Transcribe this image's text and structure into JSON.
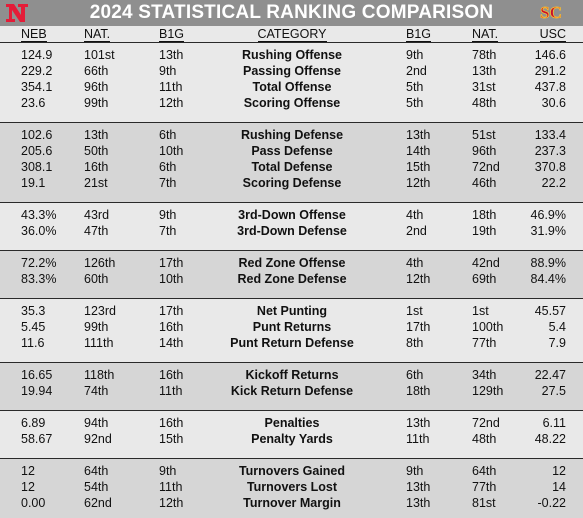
{
  "title": "2024 STATISTICAL RANKING COMPARISON",
  "colors": {
    "header_bg": "#8f8f8f",
    "row_light": "#e9e9e9",
    "row_dark": "#d6d6d6",
    "neb_red": "#e41c38",
    "usc_cardinal": "#c8102e",
    "usc_gold": "#ffc72c"
  },
  "logos": {
    "left": "nebraska-n-logo",
    "right": "usc-sc-logo"
  },
  "columns": {
    "neb": "NEB",
    "neb_nat": "NAT.",
    "neb_b1g": "B1G",
    "category": "CATEGORY",
    "usc_b1g": "B1G",
    "usc_nat": "NAT.",
    "usc": "USC"
  },
  "sections": [
    {
      "rows": [
        {
          "neb": "124.9",
          "neb_nat": "101st",
          "neb_b1g": "13th",
          "category": "Rushing Offense",
          "usc_b1g": "9th",
          "usc_nat": "78th",
          "usc": "146.6"
        },
        {
          "neb": "229.2",
          "neb_nat": "66th",
          "neb_b1g": "9th",
          "category": "Passing Offense",
          "usc_b1g": "2nd",
          "usc_nat": "13th",
          "usc": "291.2"
        },
        {
          "neb": "354.1",
          "neb_nat": "96th",
          "neb_b1g": "11th",
          "category": "Total Offense",
          "usc_b1g": "5th",
          "usc_nat": "31st",
          "usc": "437.8"
        },
        {
          "neb": "23.6",
          "neb_nat": "99th",
          "neb_b1g": "12th",
          "category": "Scoring Offense",
          "usc_b1g": "5th",
          "usc_nat": "48th",
          "usc": "30.6"
        }
      ]
    },
    {
      "rows": [
        {
          "neb": "102.6",
          "neb_nat": "13th",
          "neb_b1g": "6th",
          "category": "Rushing Defense",
          "usc_b1g": "13th",
          "usc_nat": "51st",
          "usc": "133.4"
        },
        {
          "neb": "205.6",
          "neb_nat": "50th",
          "neb_b1g": "10th",
          "category": "Pass Defense",
          "usc_b1g": "14th",
          "usc_nat": "96th",
          "usc": "237.3"
        },
        {
          "neb": "308.1",
          "neb_nat": "16th",
          "neb_b1g": "6th",
          "category": "Total Defense",
          "usc_b1g": "15th",
          "usc_nat": "72nd",
          "usc": "370.8"
        },
        {
          "neb": "19.1",
          "neb_nat": "21st",
          "neb_b1g": "7th",
          "category": "Scoring Defense",
          "usc_b1g": "12th",
          "usc_nat": "46th",
          "usc": "22.2"
        }
      ]
    },
    {
      "rows": [
        {
          "neb": "43.3%",
          "neb_nat": "43rd",
          "neb_b1g": "9th",
          "category": "3rd-Down Offense",
          "usc_b1g": "4th",
          "usc_nat": "18th",
          "usc": "46.9%"
        },
        {
          "neb": "36.0%",
          "neb_nat": "47th",
          "neb_b1g": "7th",
          "category": "3rd-Down Defense",
          "usc_b1g": "2nd",
          "usc_nat": "19th",
          "usc": "31.9%"
        }
      ]
    },
    {
      "rows": [
        {
          "neb": "72.2%",
          "neb_nat": "126th",
          "neb_b1g": "17th",
          "category": "Red Zone Offense",
          "usc_b1g": "4th",
          "usc_nat": "42nd",
          "usc": "88.9%"
        },
        {
          "neb": "83.3%",
          "neb_nat": "60th",
          "neb_b1g": "10th",
          "category": "Red Zone Defense",
          "usc_b1g": "12th",
          "usc_nat": "69th",
          "usc": "84.4%"
        }
      ]
    },
    {
      "rows": [
        {
          "neb": "35.3",
          "neb_nat": "123rd",
          "neb_b1g": "17th",
          "category": "Net Punting",
          "usc_b1g": "1st",
          "usc_nat": "1st",
          "usc": "45.57"
        },
        {
          "neb": "5.45",
          "neb_nat": "99th",
          "neb_b1g": "16th",
          "category": "Punt Returns",
          "usc_b1g": "17th",
          "usc_nat": "100th",
          "usc": "5.4"
        },
        {
          "neb": "11.6",
          "neb_nat": "111th",
          "neb_b1g": "14th",
          "category": "Punt Return Defense",
          "usc_b1g": "8th",
          "usc_nat": "77th",
          "usc": "7.9"
        }
      ]
    },
    {
      "rows": [
        {
          "neb": "16.65",
          "neb_nat": "118th",
          "neb_b1g": "16th",
          "category": "Kickoff Returns",
          "usc_b1g": "6th",
          "usc_nat": "34th",
          "usc": "22.47"
        },
        {
          "neb": "19.94",
          "neb_nat": "74th",
          "neb_b1g": "11th",
          "category": "Kick Return Defense",
          "usc_b1g": "18th",
          "usc_nat": "129th",
          "usc": "27.5"
        }
      ]
    },
    {
      "rows": [
        {
          "neb": "6.89",
          "neb_nat": "94th",
          "neb_b1g": "16th",
          "category": "Penalties",
          "usc_b1g": "13th",
          "usc_nat": "72nd",
          "usc": "6.11"
        },
        {
          "neb": "58.67",
          "neb_nat": "92nd",
          "neb_b1g": "15th",
          "category": "Penalty Yards",
          "usc_b1g": "11th",
          "usc_nat": "48th",
          "usc": "48.22"
        }
      ]
    },
    {
      "rows": [
        {
          "neb": "12",
          "neb_nat": "64th",
          "neb_b1g": "9th",
          "category": "Turnovers Gained",
          "usc_b1g": "9th",
          "usc_nat": "64th",
          "usc": "12"
        },
        {
          "neb": "12",
          "neb_nat": "54th",
          "neb_b1g": "11th",
          "category": "Turnovers Lost",
          "usc_b1g": "13th",
          "usc_nat": "77th",
          "usc": "14"
        },
        {
          "neb": "0.00",
          "neb_nat": "62nd",
          "neb_b1g": "12th",
          "category": "Turnover Margin",
          "usc_b1g": "13th",
          "usc_nat": "81st",
          "usc": "-0.22"
        }
      ]
    }
  ]
}
